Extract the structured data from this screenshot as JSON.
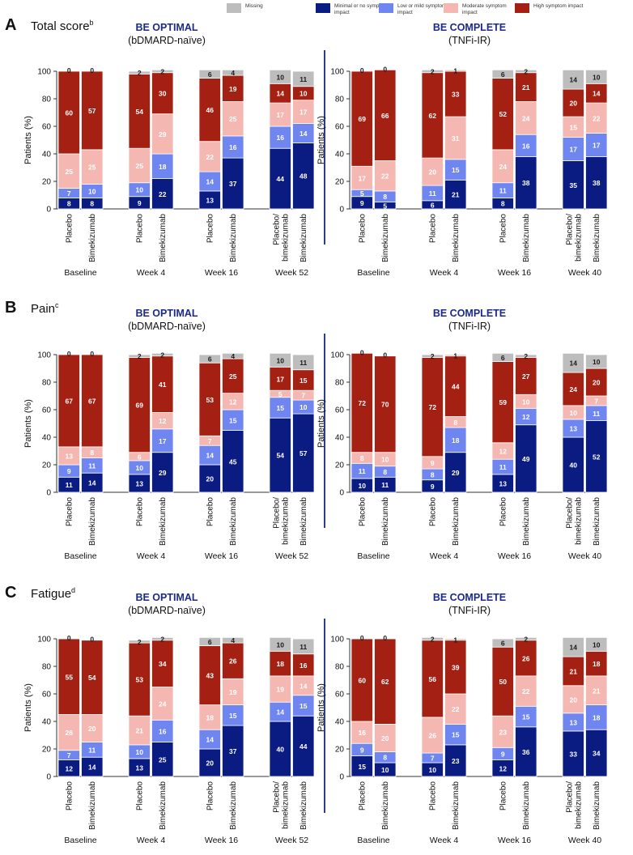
{
  "legend": [
    {
      "label": "Missing",
      "color": "#bdbdbd"
    },
    {
      "label": "Minimal or no symptom impact",
      "color": "#0a1b82"
    },
    {
      "label": "Low or mild symptom impact",
      "color": "#6f85f0"
    },
    {
      "label": "Moderate symptom impact",
      "color": "#f4b7b1"
    },
    {
      "label": "High symptom impact",
      "color": "#a32012"
    }
  ],
  "studies": [
    {
      "name": "BE OPTIMAL",
      "subtitle": "(bDMARD-naïve)"
    },
    {
      "name": "BE COMPLETE",
      "subtitle": "(TNFi-IR)"
    }
  ],
  "chart_data": [
    {
      "type": "bar",
      "stacked": true,
      "panel": "A",
      "title": "Total score",
      "title_superscript": "b",
      "study": "BE OPTIMAL",
      "ylabel": "Patients (%)",
      "ylim": [
        0,
        100
      ],
      "yticks": [
        0,
        20,
        40,
        60,
        80,
        100
      ],
      "groups": [
        "Baseline",
        "Week 4",
        "Week 16",
        "Week 52"
      ],
      "categories": [
        "Placebo",
        "Bimekizumab",
        "Placebo",
        "Bimekizumab",
        "Placebo",
        "Bimekizumab",
        "Placebo/ bimekizumab",
        "Bimekizumab"
      ],
      "series": [
        {
          "name": "Minimal or no symptom impact",
          "values": [
            8,
            8,
            9,
            22,
            13,
            37,
            44,
            48
          ]
        },
        {
          "name": "Low or mild symptom impact",
          "values": [
            7,
            10,
            10,
            18,
            14,
            16,
            16,
            14
          ]
        },
        {
          "name": "Moderate symptom impact",
          "values": [
            25,
            25,
            25,
            29,
            22,
            25,
            17,
            17
          ]
        },
        {
          "name": "High symptom impact",
          "values": [
            60,
            57,
            54,
            30,
            46,
            19,
            14,
            10
          ]
        },
        {
          "name": "Missing",
          "values": [
            0,
            0,
            2,
            2,
            6,
            4,
            10,
            11
          ]
        }
      ]
    },
    {
      "type": "bar",
      "stacked": true,
      "panel": "A",
      "study": "BE COMPLETE",
      "ylabel": "Patients (%)",
      "ylim": [
        0,
        100
      ],
      "yticks": [
        0,
        20,
        40,
        60,
        80,
        100
      ],
      "groups": [
        "Baseline",
        "Week 4",
        "Week 16",
        "Week 40"
      ],
      "categories": [
        "Placebo",
        "Bimekizumab",
        "Placebo",
        "Bimekizumab",
        "Placebo",
        "Bimekizumab",
        "Placebo/ bimekizumab",
        "Bimekizumab"
      ],
      "series": [
        {
          "name": "Minimal or no symptom impact",
          "values": [
            9,
            5,
            6,
            21,
            8,
            38,
            35,
            38
          ]
        },
        {
          "name": "Low or mild symptom impact",
          "values": [
            5,
            8,
            11,
            15,
            11,
            16,
            17,
            17
          ]
        },
        {
          "name": "Moderate symptom impact",
          "values": [
            17,
            22,
            20,
            31,
            24,
            24,
            15,
            22
          ]
        },
        {
          "name": "High symptom impact",
          "values": [
            69,
            66,
            62,
            33,
            52,
            21,
            20,
            14
          ]
        },
        {
          "name": "Missing",
          "values": [
            0,
            0,
            2,
            1,
            6,
            2,
            14,
            10
          ]
        }
      ]
    },
    {
      "type": "bar",
      "stacked": true,
      "panel": "B",
      "title": "Pain",
      "title_superscript": "c",
      "study": "BE OPTIMAL",
      "ylabel": "Patients (%)",
      "ylim": [
        0,
        100
      ],
      "yticks": [
        0,
        20,
        40,
        60,
        80,
        100
      ],
      "groups": [
        "Baseline",
        "Week 4",
        "Week 16",
        "Week 52"
      ],
      "categories": [
        "Placebo",
        "Bimekizumab",
        "Placebo",
        "Bimekizumab",
        "Placebo",
        "Bimekizumab",
        "Placebo/ bimekizumab",
        "Bimekizumab"
      ],
      "series": [
        {
          "name": "Minimal or no symptom impact",
          "values": [
            11,
            14,
            13,
            29,
            20,
            45,
            54,
            57
          ]
        },
        {
          "name": "Low or mild symptom impact",
          "values": [
            9,
            11,
            10,
            17,
            14,
            15,
            15,
            10
          ]
        },
        {
          "name": "Moderate symptom impact",
          "values": [
            13,
            8,
            6,
            12,
            7,
            12,
            5,
            7
          ]
        },
        {
          "name": "High symptom impact",
          "values": [
            67,
            67,
            69,
            41,
            53,
            25,
            17,
            15
          ]
        },
        {
          "name": "Missing",
          "values": [
            0,
            0,
            2,
            2,
            6,
            4,
            10,
            11
          ]
        }
      ]
    },
    {
      "type": "bar",
      "stacked": true,
      "panel": "B",
      "study": "BE COMPLETE",
      "ylabel": "Patients (%)",
      "ylim": [
        0,
        100
      ],
      "yticks": [
        0,
        20,
        40,
        60,
        80,
        100
      ],
      "groups": [
        "Baseline",
        "Week 4",
        "Week 16",
        "Week 40"
      ],
      "categories": [
        "Placebo",
        "Bimekizumab",
        "Placebo",
        "Bimekizumab",
        "Placebo",
        "Bimekizumab",
        "Placebo/ bimekizumab",
        "Bimekizumab"
      ],
      "series": [
        {
          "name": "Minimal or no symptom impact",
          "values": [
            10,
            11,
            9,
            29,
            13,
            49,
            40,
            52
          ]
        },
        {
          "name": "Low or mild symptom impact",
          "values": [
            11,
            8,
            8,
            18,
            11,
            12,
            13,
            11
          ]
        },
        {
          "name": "Moderate symptom impact",
          "values": [
            8,
            10,
            9,
            8,
            12,
            10,
            10,
            7
          ]
        },
        {
          "name": "High symptom impact",
          "values": [
            72,
            70,
            72,
            44,
            59,
            27,
            24,
            20
          ]
        },
        {
          "name": "Missing",
          "values": [
            0,
            0,
            2,
            1,
            6,
            2,
            14,
            10
          ]
        }
      ]
    },
    {
      "type": "bar",
      "stacked": true,
      "panel": "C",
      "title": "Fatigue",
      "title_superscript": "d",
      "study": "BE OPTIMAL",
      "ylabel": "Patients (%)",
      "ylim": [
        0,
        100
      ],
      "yticks": [
        0,
        20,
        40,
        60,
        80,
        100
      ],
      "groups": [
        "Baseline",
        "Week 4",
        "Week 16",
        "Week 52"
      ],
      "categories": [
        "Placebo",
        "Bimekizumab",
        "Placebo",
        "Bimekizumab",
        "Placebo",
        "Bimekizumab",
        "Placebo/ bimekizumab",
        "Bimekizumab"
      ],
      "series": [
        {
          "name": "Minimal or no symptom impact",
          "values": [
            12,
            14,
            13,
            25,
            20,
            37,
            40,
            44
          ]
        },
        {
          "name": "Low or mild symptom impact",
          "values": [
            7,
            11,
            10,
            16,
            14,
            15,
            14,
            15
          ]
        },
        {
          "name": "Moderate symptom impact",
          "values": [
            26,
            20,
            21,
            24,
            18,
            19,
            19,
            14
          ]
        },
        {
          "name": "High symptom impact",
          "values": [
            55,
            54,
            53,
            34,
            43,
            26,
            18,
            16
          ]
        },
        {
          "name": "Missing",
          "values": [
            0,
            0,
            2,
            2,
            6,
            4,
            10,
            11
          ]
        }
      ]
    },
    {
      "type": "bar",
      "stacked": true,
      "panel": "C",
      "study": "BE COMPLETE",
      "ylabel": "Patients (%)",
      "ylim": [
        0,
        100
      ],
      "yticks": [
        0,
        20,
        40,
        60,
        80,
        100
      ],
      "groups": [
        "Baseline",
        "Week 4",
        "Week 16",
        "Week 40"
      ],
      "categories": [
        "Placebo",
        "Bimekizumab",
        "Placebo",
        "Bimekizumab",
        "Placebo",
        "Bimekizumab",
        "Placebo/ bimekizumab",
        "Bimekizumab"
      ],
      "series": [
        {
          "name": "Minimal or no symptom impact",
          "values": [
            15,
            10,
            10,
            23,
            12,
            36,
            33,
            34
          ]
        },
        {
          "name": "Low or mild symptom impact",
          "values": [
            9,
            8,
            7,
            15,
            9,
            15,
            13,
            18
          ]
        },
        {
          "name": "Moderate symptom impact",
          "values": [
            16,
            20,
            26,
            22,
            23,
            22,
            20,
            21
          ]
        },
        {
          "name": "High symptom impact",
          "values": [
            60,
            62,
            56,
            39,
            50,
            26,
            21,
            18
          ]
        },
        {
          "name": "Missing",
          "values": [
            0,
            0,
            2,
            1,
            6,
            2,
            14,
            10
          ]
        }
      ]
    }
  ]
}
